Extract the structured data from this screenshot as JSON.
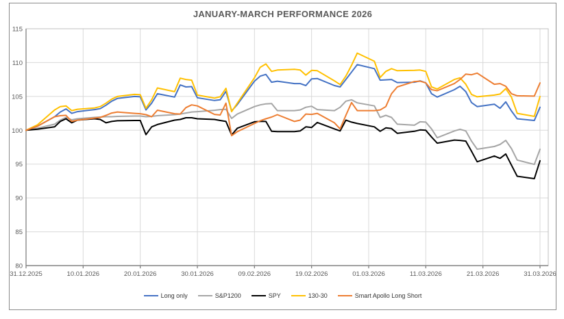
{
  "colors": {
    "frame": "#8a8a8a",
    "plot_border": "#bfbfbf",
    "gridline": "#d9d9d9",
    "axis_line": "#808080",
    "axis_text": "#595959",
    "title_text": "#595959",
    "blue": "#4472c4",
    "gray": "#a5a5a5",
    "black": "#000000",
    "yellow": "#ffc000",
    "orange": "#ed7d31"
  },
  "chart_data": {
    "type": "line",
    "title": "JANUARY-MARCH PERFORMANCE 2026",
    "xlabel": "",
    "ylabel": "",
    "ylim": [
      80,
      115
    ],
    "y_ticks": [
      80,
      85,
      90,
      95,
      100,
      105,
      110,
      115
    ],
    "grid": true,
    "legend_position": "bottom",
    "x_total_days": 90,
    "x_ticks": [
      {
        "day": 0,
        "label": "31.12.2025"
      },
      {
        "day": 10,
        "label": "10.01.2026"
      },
      {
        "day": 20,
        "label": "20.01.2026"
      },
      {
        "day": 30,
        "label": "30.01.2026"
      },
      {
        "day": 40,
        "label": "09.02.2026"
      },
      {
        "day": 50,
        "label": "19.02.2026"
      },
      {
        "day": 60,
        "label": "01.03.2026"
      },
      {
        "day": 70,
        "label": "11.03.2026"
      },
      {
        "day": 80,
        "label": "21.03.2026"
      },
      {
        "day": 90,
        "label": "31.03.2026"
      }
    ],
    "x_days": [
      0,
      2,
      5,
      6,
      7,
      8,
      9,
      12,
      13,
      14,
      15,
      16,
      19,
      20,
      21,
      22,
      23,
      26,
      27,
      28,
      29,
      30,
      33,
      34,
      35,
      36,
      37,
      40,
      41,
      42,
      43,
      44,
      47,
      48,
      49,
      50,
      51,
      54,
      55,
      56,
      57,
      58,
      61,
      62,
      63,
      64,
      65,
      68,
      69,
      70,
      71,
      72,
      75,
      76,
      77,
      78,
      79,
      82,
      83,
      84,
      85,
      86,
      89,
      90
    ],
    "series": [
      {
        "name": "Long only",
        "color": "#4472c4",
        "values": [
          100,
          100.6,
          102,
          102.7,
          103.15,
          102.5,
          102.75,
          103.05,
          103.2,
          103.7,
          104.3,
          104.7,
          105,
          104.95,
          103,
          104,
          105.4,
          104.9,
          106.7,
          106.4,
          106.45,
          104.8,
          104.4,
          104.5,
          105.75,
          102.85,
          103.8,
          107.25,
          108,
          108.25,
          107.1,
          107.25,
          106.9,
          106.9,
          106.6,
          107.6,
          107.65,
          106.6,
          106.4,
          107.5,
          108.6,
          109.7,
          109.1,
          107.4,
          107.45,
          107.5,
          107.05,
          107.1,
          107.3,
          107,
          105.4,
          104.9,
          106,
          106.5,
          105.7,
          104.1,
          103.5,
          103.85,
          103.25,
          104.2,
          102.85,
          101.7,
          101.45,
          103.4
        ]
      },
      {
        "name": "S&P1200",
        "color": "#a5a5a5",
        "values": [
          100,
          100.3,
          100.9,
          101.5,
          101.9,
          101.55,
          101.7,
          101.9,
          101.95,
          102,
          102,
          102.05,
          102.1,
          102.1,
          102,
          102.05,
          102.15,
          102.3,
          102.4,
          102.55,
          102.7,
          102.75,
          102.95,
          103.05,
          103.1,
          101.75,
          102.4,
          103.5,
          103.75,
          103.9,
          103.95,
          102.9,
          102.9,
          103,
          103.4,
          103.55,
          103.05,
          102.9,
          103.4,
          104.3,
          104.5,
          104.05,
          103.6,
          101.9,
          102.2,
          101.9,
          100.9,
          100.75,
          101.25,
          101.2,
          100.2,
          98.9,
          99.9,
          100.15,
          99.9,
          98.4,
          97.2,
          97.6,
          97.9,
          98.5,
          97.3,
          95.6,
          94.95,
          97.2
        ]
      },
      {
        "name": "SPY",
        "color": "#000000",
        "values": [
          100,
          100.15,
          100.5,
          101.3,
          101.7,
          101.1,
          101.5,
          101.7,
          101.6,
          101.1,
          101.3,
          101.4,
          101.45,
          101.45,
          99.35,
          100.5,
          100.85,
          101.5,
          101.6,
          101.85,
          101.85,
          101.7,
          101.6,
          101.45,
          101.3,
          99.3,
          100.3,
          101.25,
          101.3,
          101.3,
          99.85,
          99.8,
          99.8,
          99.9,
          100.5,
          100.4,
          101.15,
          100.2,
          99.9,
          101.5,
          101.2,
          101,
          100.5,
          99.85,
          100.35,
          100.25,
          99.55,
          99.85,
          100.05,
          100,
          99,
          98.1,
          98.55,
          98.5,
          98.4,
          96.9,
          95.35,
          96.2,
          95.85,
          96.5,
          94.85,
          93.2,
          92.85,
          95.5
        ]
      },
      {
        "name": "130-30",
        "color": "#ffc000",
        "values": [
          100,
          100.8,
          103,
          103.5,
          103.6,
          102.9,
          103.1,
          103.3,
          103.5,
          104,
          104.6,
          105,
          105.3,
          105.25,
          103.25,
          104.5,
          106.25,
          105.7,
          107.7,
          107.5,
          107.4,
          105.2,
          104.75,
          104.95,
          106.2,
          102.75,
          104,
          107.75,
          109.3,
          109.8,
          108.7,
          108.9,
          109,
          108.9,
          108.15,
          108.85,
          108.8,
          107.3,
          106.75,
          108,
          109.6,
          111.4,
          110.2,
          107.8,
          108.7,
          109.1,
          108.8,
          108.85,
          108.9,
          108.7,
          106.4,
          106.1,
          107.5,
          107.75,
          106.8,
          105.3,
          104.95,
          105.2,
          105.35,
          106.15,
          104.9,
          102.5,
          102.05,
          105
        ]
      },
      {
        "name": "Smart Apollo Long Short",
        "color": "#ed7d31",
        "values": [
          100,
          100.6,
          102,
          102.15,
          102.2,
          101.3,
          101.5,
          101.8,
          101.9,
          102.2,
          102.55,
          102.7,
          102.5,
          102.45,
          102.3,
          102,
          102.96,
          102.45,
          102.4,
          103.35,
          103.75,
          103.6,
          102.35,
          102.25,
          104,
          99.2,
          99.8,
          101,
          101.4,
          101.7,
          101.95,
          102.3,
          101.3,
          101.5,
          102.4,
          102.35,
          102.5,
          101.1,
          100.2,
          102.2,
          104.1,
          102.9,
          102.9,
          103,
          103.5,
          105.4,
          106.4,
          107.2,
          107.25,
          107,
          106,
          105.85,
          106.9,
          107.5,
          108.3,
          108.2,
          108.45,
          106.8,
          106.9,
          106.5,
          105.4,
          105.1,
          105.05,
          107
        ]
      }
    ]
  }
}
